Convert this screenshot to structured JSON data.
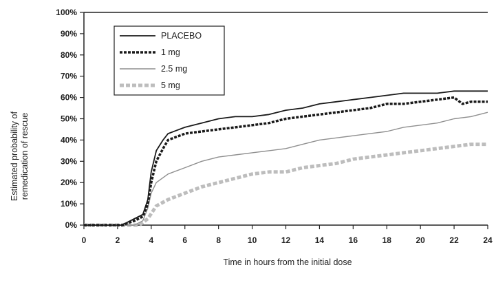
{
  "chart_data": {
    "type": "line",
    "xlabel": "Time in hours from the initial dose",
    "ylabel": [
      "Estimated probability of",
      "remedication of rescue"
    ],
    "xlim": [
      0,
      24
    ],
    "ylim": [
      0,
      100
    ],
    "x_ticks": [
      "0",
      "2",
      "4",
      "6",
      "8",
      "10",
      "12",
      "14",
      "16",
      "18",
      "20",
      "22",
      "24"
    ],
    "y_ticks": [
      "0%",
      "10%",
      "20%",
      "30%",
      "40%",
      "50%",
      "60%",
      "70%",
      "80%",
      "90%",
      "100%"
    ],
    "grid": false,
    "legend_position": "top-left",
    "series": [
      {
        "name": "PLACEBO",
        "color": "#1a1a1a",
        "style": "solid-thin",
        "points": [
          [
            0,
            0
          ],
          [
            2.2,
            0
          ],
          [
            2.5,
            1
          ],
          [
            3,
            3
          ],
          [
            3.5,
            5
          ],
          [
            3.8,
            12
          ],
          [
            4,
            25
          ],
          [
            4.3,
            35
          ],
          [
            4.7,
            40
          ],
          [
            5,
            43
          ],
          [
            6,
            46
          ],
          [
            7,
            48
          ],
          [
            8,
            50
          ],
          [
            9,
            51
          ],
          [
            10,
            51
          ],
          [
            11,
            52
          ],
          [
            12,
            54
          ],
          [
            13,
            55
          ],
          [
            14,
            57
          ],
          [
            15,
            58
          ],
          [
            16,
            59
          ],
          [
            17,
            60
          ],
          [
            18,
            61
          ],
          [
            19,
            62
          ],
          [
            20,
            62
          ],
          [
            21,
            62
          ],
          [
            22,
            63
          ],
          [
            23,
            63
          ],
          [
            24,
            63
          ]
        ]
      },
      {
        "name": "1 mg",
        "color": "#1a1a1a",
        "style": "dashed-thick",
        "points": [
          [
            0,
            0
          ],
          [
            2.3,
            0
          ],
          [
            2.6,
            1
          ],
          [
            3,
            2
          ],
          [
            3.5,
            4
          ],
          [
            3.8,
            10
          ],
          [
            4,
            20
          ],
          [
            4.3,
            30
          ],
          [
            4.7,
            36
          ],
          [
            5,
            40
          ],
          [
            6,
            43
          ],
          [
            7,
            44
          ],
          [
            8,
            45
          ],
          [
            9,
            46
          ],
          [
            10,
            47
          ],
          [
            11,
            48
          ],
          [
            12,
            50
          ],
          [
            13,
            51
          ],
          [
            14,
            52
          ],
          [
            15,
            53
          ],
          [
            16,
            54
          ],
          [
            17,
            55
          ],
          [
            18,
            57
          ],
          [
            19,
            57
          ],
          [
            20,
            58
          ],
          [
            21,
            59
          ],
          [
            22,
            60
          ],
          [
            22.5,
            57
          ],
          [
            23,
            58
          ],
          [
            24,
            58
          ]
        ]
      },
      {
        "name": "2.5 mg",
        "color": "#8f8f8f",
        "style": "solid-thin",
        "points": [
          [
            0,
            0
          ],
          [
            3,
            0
          ],
          [
            3.5,
            2
          ],
          [
            3.8,
            8
          ],
          [
            4,
            15
          ],
          [
            4.3,
            20
          ],
          [
            5,
            24
          ],
          [
            6,
            27
          ],
          [
            7,
            30
          ],
          [
            8,
            32
          ],
          [
            9,
            33
          ],
          [
            10,
            34
          ],
          [
            11,
            35
          ],
          [
            12,
            36
          ],
          [
            13,
            38
          ],
          [
            14,
            40
          ],
          [
            15,
            41
          ],
          [
            16,
            42
          ],
          [
            17,
            43
          ],
          [
            18,
            44
          ],
          [
            19,
            46
          ],
          [
            20,
            47
          ],
          [
            21,
            48
          ],
          [
            22,
            50
          ],
          [
            23,
            51
          ],
          [
            24,
            53
          ]
        ]
      },
      {
        "name": "5 mg",
        "color": "#bdbdbd",
        "style": "dashed-thick",
        "points": [
          [
            0,
            0
          ],
          [
            3.3,
            0
          ],
          [
            3.8,
            3
          ],
          [
            4.3,
            9
          ],
          [
            5,
            12
          ],
          [
            6,
            15
          ],
          [
            7,
            18
          ],
          [
            8,
            20
          ],
          [
            9,
            22
          ],
          [
            10,
            24
          ],
          [
            11,
            25
          ],
          [
            12,
            25
          ],
          [
            13,
            27
          ],
          [
            14,
            28
          ],
          [
            15,
            29
          ],
          [
            16,
            31
          ],
          [
            17,
            32
          ],
          [
            18,
            33
          ],
          [
            19,
            34
          ],
          [
            20,
            35
          ],
          [
            21,
            36
          ],
          [
            22,
            37
          ],
          [
            23,
            38
          ],
          [
            24,
            38
          ]
        ]
      }
    ]
  }
}
